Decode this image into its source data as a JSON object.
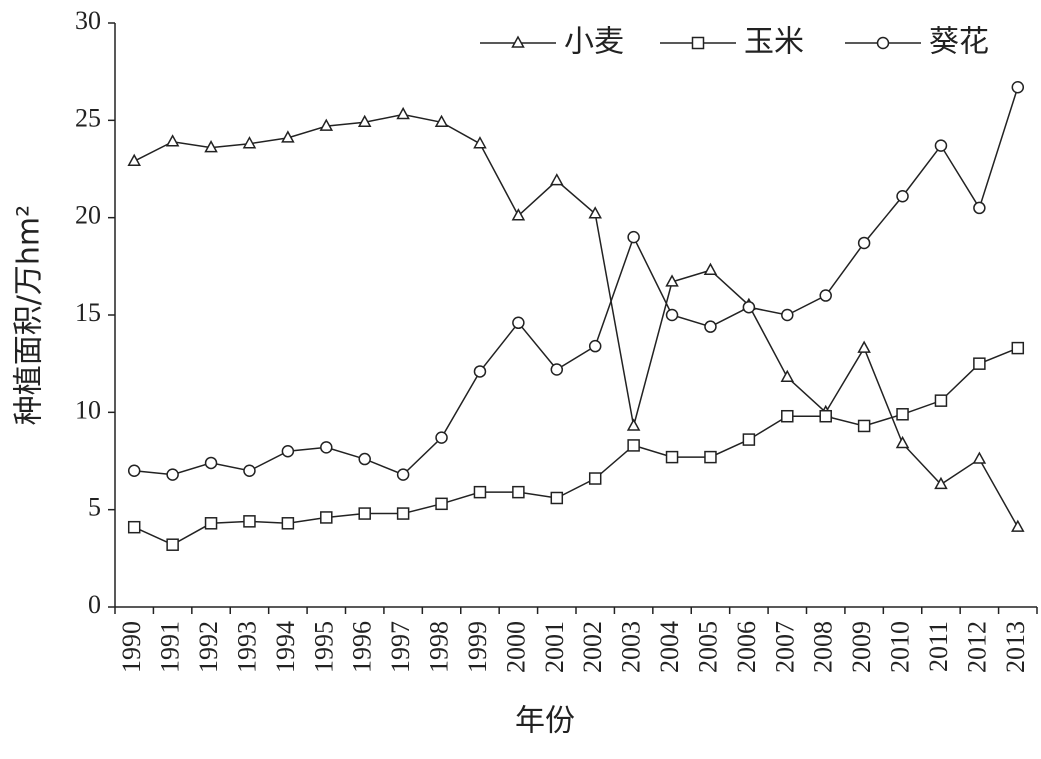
{
  "chart_data": {
    "type": "line",
    "y_label": "种植面积/万hm²",
    "x_label": "年份",
    "categories": [
      "1990",
      "1991",
      "1992",
      "1993",
      "1994",
      "1995",
      "1996",
      "1997",
      "1998",
      "1999",
      "2000",
      "2001",
      "2002",
      "2003",
      "2004",
      "2005",
      "2006",
      "2007",
      "2008",
      "2009",
      "2010",
      "2011",
      "2012",
      "2013"
    ],
    "series": [
      {
        "name": "小麦",
        "color": "#222222",
        "marker": "triangle",
        "values": [
          22.9,
          23.9,
          23.6,
          23.8,
          24.1,
          24.7,
          24.9,
          25.3,
          24.9,
          23.8,
          20.1,
          21.9,
          20.2,
          9.3,
          16.7,
          17.3,
          15.5,
          11.8,
          10.0,
          13.3,
          8.4,
          6.3,
          7.6,
          4.1
        ]
      },
      {
        "name": "玉米",
        "color": "#222222",
        "marker": "square",
        "values": [
          4.1,
          3.2,
          4.3,
          4.4,
          4.3,
          4.6,
          4.8,
          4.8,
          5.3,
          5.9,
          5.9,
          5.6,
          6.6,
          8.3,
          7.7,
          7.7,
          8.6,
          9.8,
          9.8,
          9.3,
          9.9,
          10.6,
          12.5,
          13.3
        ]
      },
      {
        "name": "葵花",
        "color": "#222222",
        "marker": "circle",
        "values": [
          7.0,
          6.8,
          7.4,
          7.0,
          8.0,
          8.2,
          7.6,
          6.8,
          8.7,
          12.1,
          14.6,
          12.2,
          13.4,
          19.0,
          15.0,
          14.4,
          15.4,
          15.0,
          16.0,
          18.7,
          21.1,
          23.7,
          20.5,
          26.7
        ]
      }
    ],
    "ylim": [
      0,
      30
    ],
    "yticks": [
      0,
      5,
      10,
      15,
      20,
      25,
      30
    ],
    "grid": false,
    "legend": "top-right"
  }
}
